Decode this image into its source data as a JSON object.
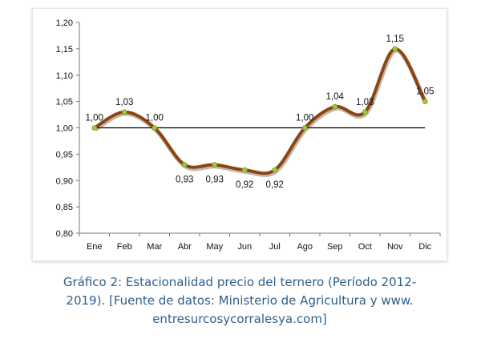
{
  "chart_data": {
    "type": "line",
    "categories": [
      "Ene",
      "Feb",
      "Mar",
      "Abr",
      "May",
      "Jun",
      "Jul",
      "Ago",
      "Sep",
      "Oct",
      "Nov",
      "Dic"
    ],
    "values": [
      1.0,
      1.03,
      1.0,
      0.93,
      0.93,
      0.92,
      0.92,
      1.0,
      1.04,
      1.03,
      1.15,
      1.05
    ],
    "data_labels": [
      "1,00",
      "1,03",
      "1,00",
      "0,93",
      "0,93",
      "0,92",
      "0,92",
      "1,00",
      "1,04",
      "1,03",
      "1,15",
      "1,05"
    ],
    "y_ticks": [
      0.8,
      0.85,
      0.9,
      0.95,
      1.0,
      1.05,
      1.1,
      1.15,
      1.2
    ],
    "y_tick_labels": [
      "0,80",
      "0,85",
      "0,90",
      "0,95",
      "1,00",
      "1,05",
      "1,10",
      "1,15",
      "1,20"
    ],
    "ylim": [
      0.8,
      1.2
    ],
    "reference_line": 1.0,
    "grid": false,
    "legend": "none",
    "colors": {
      "line": "#8b4513",
      "marker": "#9acd32",
      "reference": "#000000",
      "axis": "#777777"
    }
  },
  "caption": {
    "line1": "Gráfico 2: Estacionalidad precio del ternero (Período 2012-",
    "line2": "2019). [Fuente de datos: Ministerio de Agricultura y www.",
    "line3": "entresurcosycorralesya.com]"
  }
}
